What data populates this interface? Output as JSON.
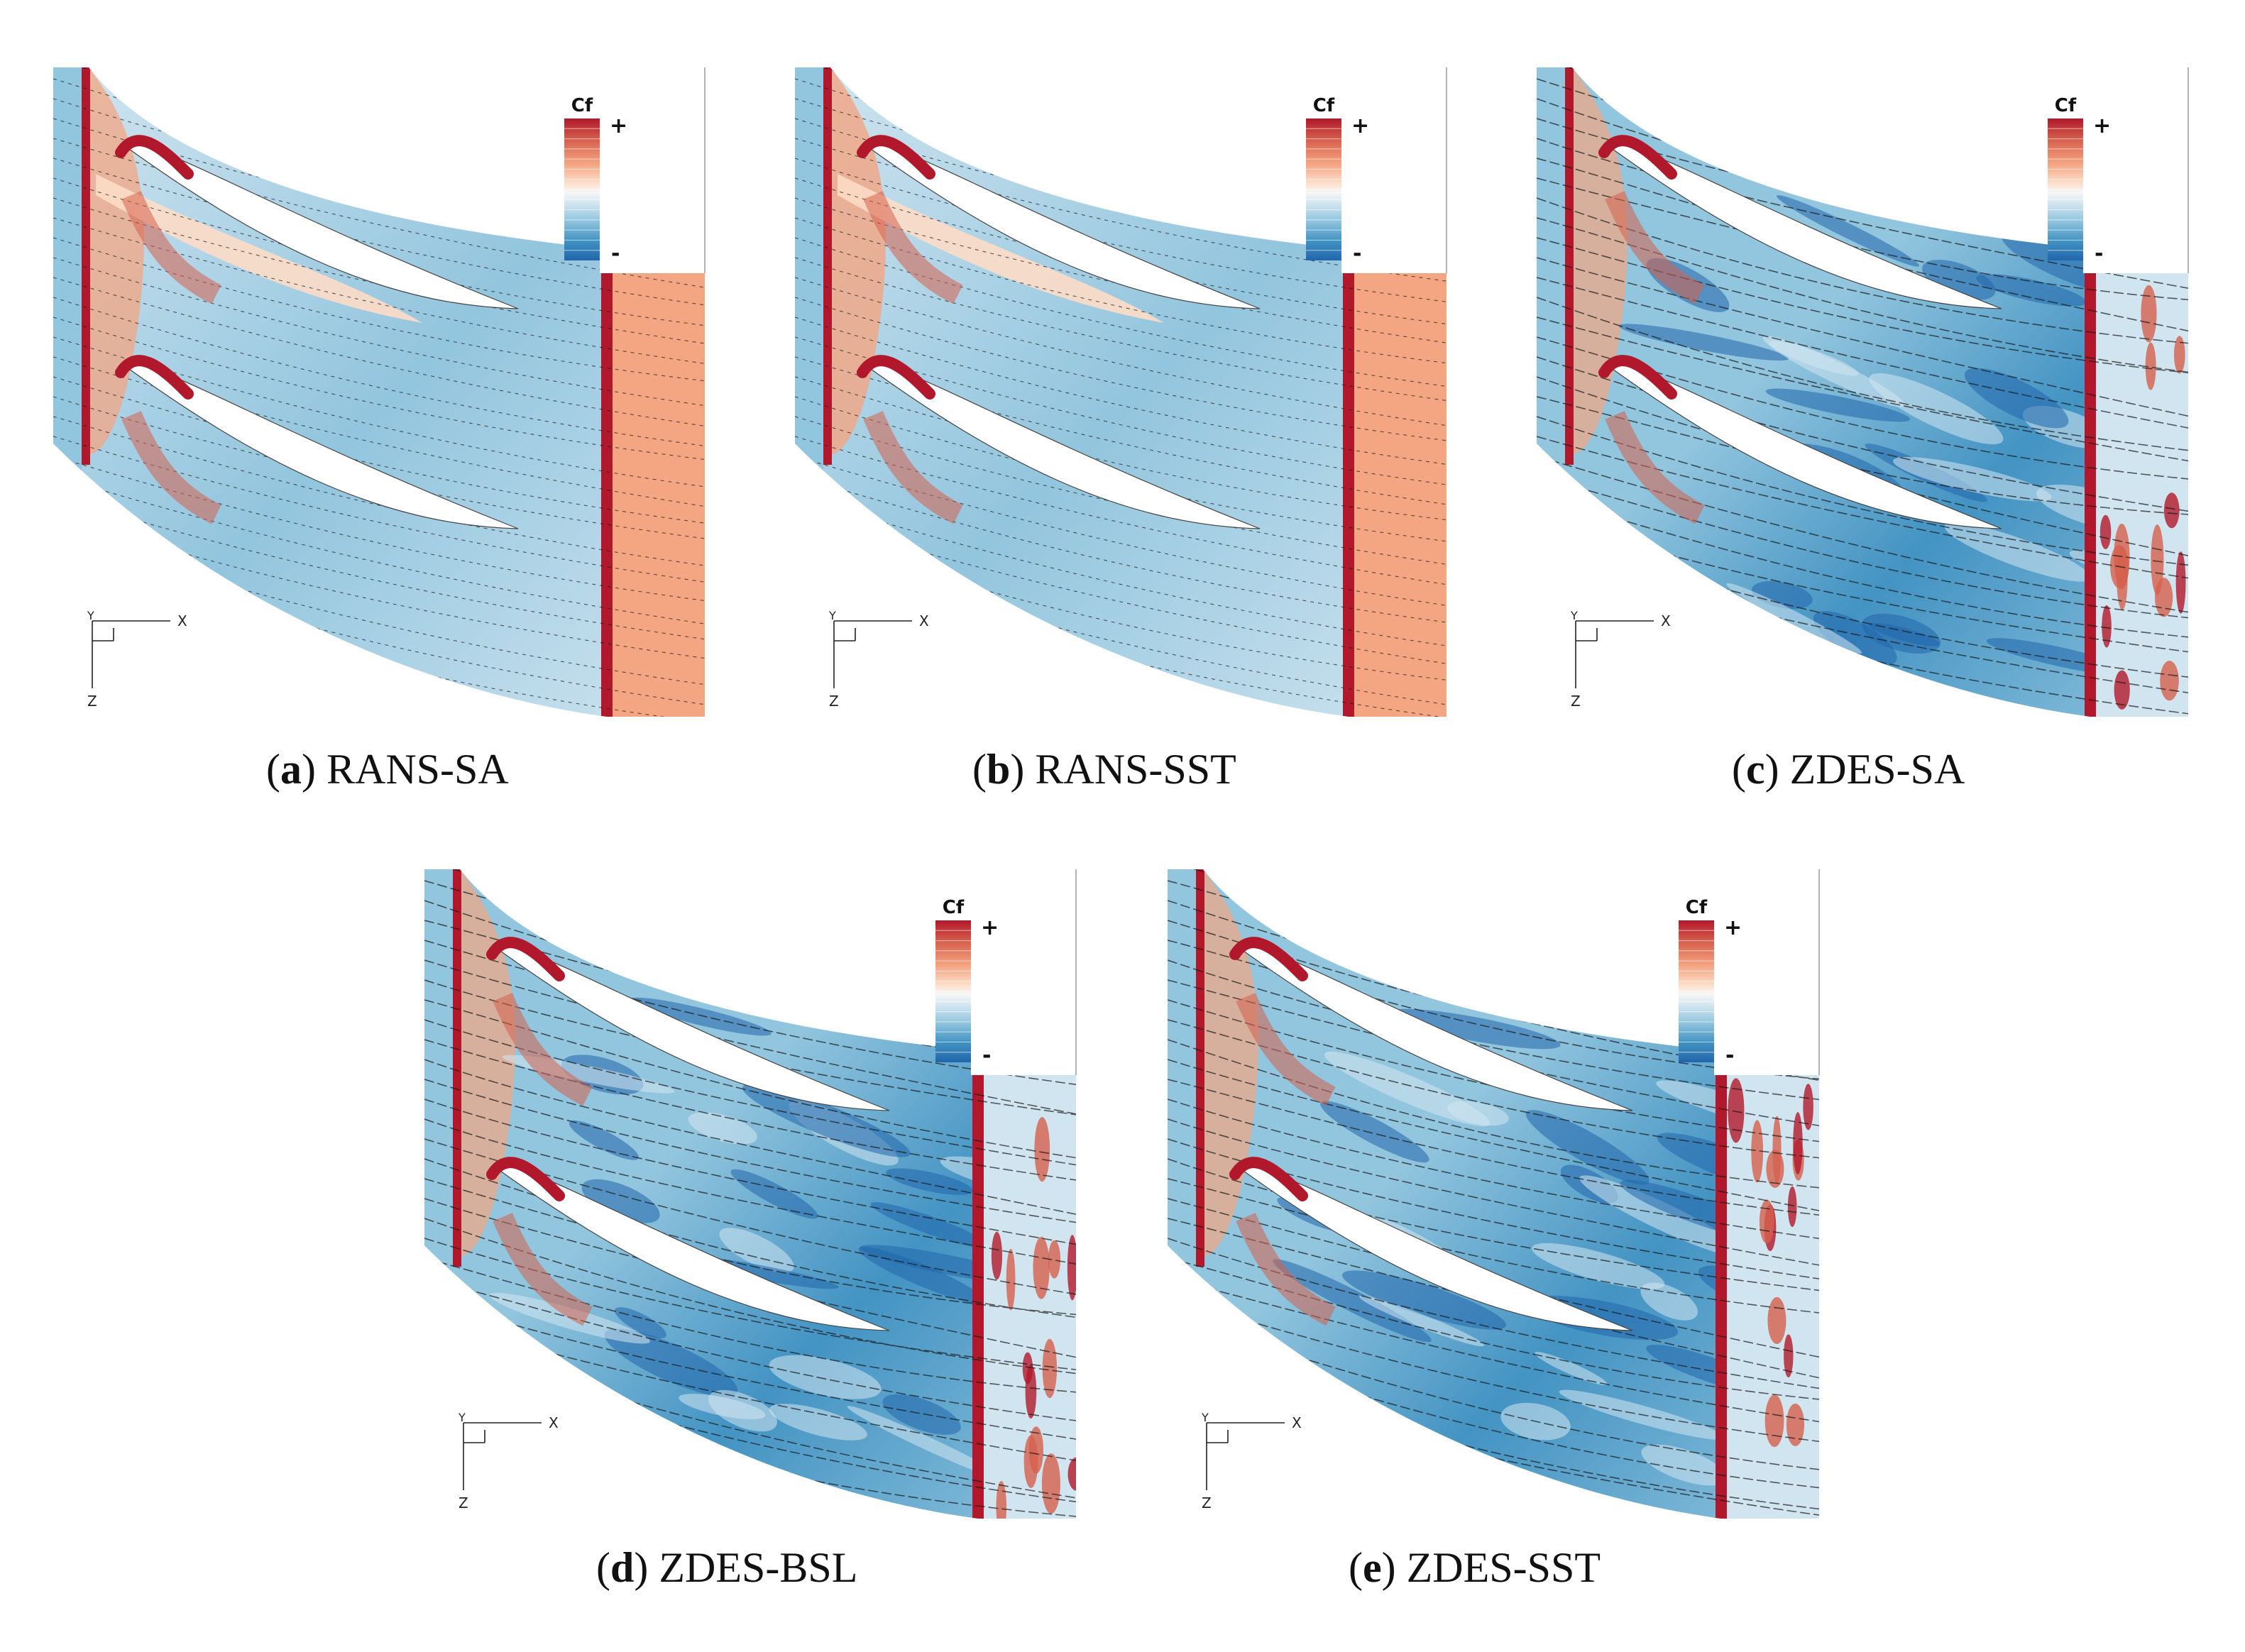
{
  "figure": {
    "colorbar_label": "Cf",
    "colorbar_plus": "+",
    "colorbar_minus": "-",
    "axis_x": "X",
    "axis_y": "Y",
    "axis_z": "Z",
    "colors": {
      "deep_red": "#b2182b",
      "red": "#d6604d",
      "light_red": "#f4a582",
      "pale_red": "#fddbc7",
      "white": "#f7f7f7",
      "pale_blue": "#d1e5f0",
      "light_blue": "#92c5de",
      "blue": "#4393c3",
      "deep_blue": "#2166ac"
    },
    "panels": [
      {
        "letter": "a",
        "title": "RANS-SA",
        "style": "rans_sa"
      },
      {
        "letter": "b",
        "title": "RANS-SST",
        "style": "rans_sst"
      },
      {
        "letter": "c",
        "title": "ZDES-SA",
        "style": "zdes"
      },
      {
        "letter": "d",
        "title": "ZDES-BSL",
        "style": "zdes"
      },
      {
        "letter": "e",
        "title": "ZDES-SST",
        "style": "zdes"
      }
    ]
  }
}
